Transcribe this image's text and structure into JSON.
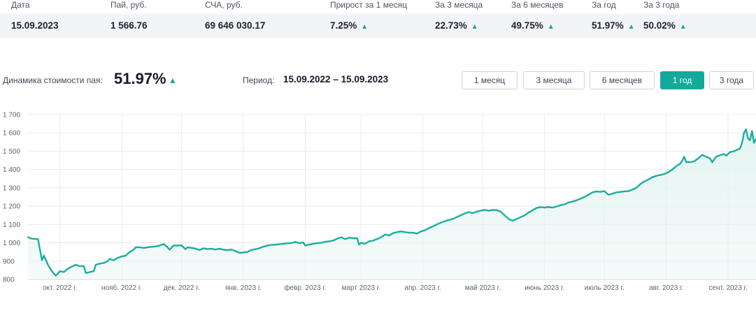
{
  "stats": {
    "headers": [
      "Дата",
      "Пай, руб.",
      "СЧА, руб.",
      "Прирост за 1 месяц",
      "За 3 месяца",
      "За 6 месяцев",
      "За год",
      "За 3 года"
    ],
    "values": [
      "15.09.2023",
      "1 566.76",
      "69 646 030.17",
      "7.25%",
      "22.73%",
      "49.75%",
      "51.97%",
      "50.02%"
    ],
    "up_arrow": "▲"
  },
  "dynamics": {
    "label": "Динамика стоимости пая:",
    "value": "51.97%",
    "arrow": "▲"
  },
  "period": {
    "label": "Период:",
    "value": "15.09.2022 – 15.09.2023"
  },
  "range_buttons": [
    {
      "label": "1 месяц",
      "active": false
    },
    {
      "label": "3 месяца",
      "active": false
    },
    {
      "label": "6 месяцев",
      "active": false
    },
    {
      "label": "1 год",
      "active": true
    },
    {
      "label": "3 года",
      "active": false
    }
  ],
  "colors": {
    "accent": "#14a99a",
    "line": "#1aae9f",
    "fill": "#e3f4f1",
    "grid": "#e8ebef"
  },
  "chart_data": {
    "type": "area",
    "title": "",
    "xlabel": "",
    "ylabel": "",
    "ylim": [
      800,
      1700
    ],
    "yticks": [
      800,
      900,
      1000,
      1100,
      1200,
      1300,
      1400,
      1500,
      1600,
      1700
    ],
    "ytick_labels": [
      "800",
      "900",
      "1 000",
      "1 100",
      "1 200",
      "1 300",
      "1 400",
      "1 500",
      "1 600",
      "1 700"
    ],
    "xlim": [
      "2022-09-15",
      "2023-09-15"
    ],
    "x_ticks": [
      {
        "date": "2022-10-01",
        "label": "окт. 2022 г."
      },
      {
        "date": "2022-11-01",
        "label": "нояб. 2022 г."
      },
      {
        "date": "2022-12-01",
        "label": "дек. 2022 г."
      },
      {
        "date": "2023-01-01",
        "label": "янв. 2023 г."
      },
      {
        "date": "2023-02-01",
        "label": "февр. 2023 г."
      },
      {
        "date": "2023-03-01",
        "label": "март 2023 г."
      },
      {
        "date": "2023-04-01",
        "label": "апр. 2023 г."
      },
      {
        "date": "2023-05-01",
        "label": "май 2023 г."
      },
      {
        "date": "2023-06-01",
        "label": "июнь 2023 г."
      },
      {
        "date": "2023-07-01",
        "label": "июль 2023 г."
      },
      {
        "date": "2023-08-01",
        "label": "авг. 2023 г."
      },
      {
        "date": "2023-09-01",
        "label": "сент. 2023 г."
      }
    ],
    "grid": true,
    "series": [
      {
        "points": [
          [
            "2022-09-15",
            1030
          ],
          [
            "2022-09-17",
            1022
          ],
          [
            "2022-09-20",
            1020
          ],
          [
            "2022-09-22",
            905
          ],
          [
            "2022-09-23",
            930
          ],
          [
            "2022-09-25",
            880
          ],
          [
            "2022-09-27",
            845
          ],
          [
            "2022-09-29",
            820
          ],
          [
            "2022-10-01",
            845
          ],
          [
            "2022-10-03",
            840
          ],
          [
            "2022-10-05",
            858
          ],
          [
            "2022-10-07",
            870
          ],
          [
            "2022-10-09",
            880
          ],
          [
            "2022-10-11",
            872
          ],
          [
            "2022-10-13",
            873
          ],
          [
            "2022-10-14",
            835
          ],
          [
            "2022-10-16",
            840
          ],
          [
            "2022-10-18",
            845
          ],
          [
            "2022-10-19",
            880
          ],
          [
            "2022-10-21",
            886
          ],
          [
            "2022-10-23",
            890
          ],
          [
            "2022-10-25",
            900
          ],
          [
            "2022-10-26",
            912
          ],
          [
            "2022-10-28",
            905
          ],
          [
            "2022-10-30",
            918
          ],
          [
            "2022-11-01",
            925
          ],
          [
            "2022-11-03",
            930
          ],
          [
            "2022-11-05",
            950
          ],
          [
            "2022-11-07",
            962
          ],
          [
            "2022-11-08",
            975
          ],
          [
            "2022-11-10",
            975
          ],
          [
            "2022-11-12",
            972
          ],
          [
            "2022-11-14",
            975
          ],
          [
            "2022-11-16",
            978
          ],
          [
            "2022-11-18",
            980
          ],
          [
            "2022-11-20",
            985
          ],
          [
            "2022-11-22",
            993
          ],
          [
            "2022-11-24",
            975
          ],
          [
            "2022-11-25",
            962
          ],
          [
            "2022-11-27",
            985
          ],
          [
            "2022-11-29",
            985
          ],
          [
            "2022-12-01",
            986
          ],
          [
            "2022-12-03",
            965
          ],
          [
            "2022-12-04",
            975
          ],
          [
            "2022-12-06",
            972
          ],
          [
            "2022-12-08",
            968
          ],
          [
            "2022-12-10",
            960
          ],
          [
            "2022-12-12",
            970
          ],
          [
            "2022-12-14",
            965
          ],
          [
            "2022-12-16",
            968
          ],
          [
            "2022-12-18",
            963
          ],
          [
            "2022-12-20",
            968
          ],
          [
            "2022-12-22",
            962
          ],
          [
            "2022-12-24",
            960
          ],
          [
            "2022-12-26",
            963
          ],
          [
            "2022-12-28",
            955
          ],
          [
            "2022-12-30",
            945
          ],
          [
            "2023-01-01",
            947
          ],
          [
            "2023-01-03",
            950
          ],
          [
            "2023-01-05",
            960
          ],
          [
            "2023-01-07",
            965
          ],
          [
            "2023-01-09",
            970
          ],
          [
            "2023-01-11",
            978
          ],
          [
            "2023-01-13",
            985
          ],
          [
            "2023-01-15",
            988
          ],
          [
            "2023-01-17",
            990
          ],
          [
            "2023-01-19",
            992
          ],
          [
            "2023-01-21",
            995
          ],
          [
            "2023-01-23",
            997
          ],
          [
            "2023-01-25",
            998
          ],
          [
            "2023-01-27",
            1005
          ],
          [
            "2023-01-29",
            998
          ],
          [
            "2023-01-31",
            1002
          ],
          [
            "2023-02-01",
            985
          ],
          [
            "2023-02-03",
            990
          ],
          [
            "2023-02-05",
            995
          ],
          [
            "2023-02-07",
            998
          ],
          [
            "2023-02-09",
            1000
          ],
          [
            "2023-02-11",
            1005
          ],
          [
            "2023-02-13",
            1008
          ],
          [
            "2023-02-15",
            1012
          ],
          [
            "2023-02-17",
            1022
          ],
          [
            "2023-02-19",
            1030
          ],
          [
            "2023-02-21",
            1020
          ],
          [
            "2023-02-23",
            1028
          ],
          [
            "2023-02-25",
            1025
          ],
          [
            "2023-02-27",
            1025
          ],
          [
            "2023-02-28",
            990
          ],
          [
            "2023-03-01",
            1000
          ],
          [
            "2023-03-03",
            995
          ],
          [
            "2023-03-05",
            1008
          ],
          [
            "2023-03-07",
            1012
          ],
          [
            "2023-03-09",
            1020
          ],
          [
            "2023-03-11",
            1030
          ],
          [
            "2023-03-13",
            1045
          ],
          [
            "2023-03-15",
            1040
          ],
          [
            "2023-03-17",
            1052
          ],
          [
            "2023-03-19",
            1058
          ],
          [
            "2023-03-21",
            1062
          ],
          [
            "2023-03-23",
            1058
          ],
          [
            "2023-03-25",
            1055
          ],
          [
            "2023-03-27",
            1055
          ],
          [
            "2023-03-29",
            1050
          ],
          [
            "2023-03-31",
            1062
          ],
          [
            "2023-04-02",
            1068
          ],
          [
            "2023-04-04",
            1080
          ],
          [
            "2023-04-06",
            1090
          ],
          [
            "2023-04-08",
            1100
          ],
          [
            "2023-04-10",
            1110
          ],
          [
            "2023-04-12",
            1118
          ],
          [
            "2023-04-14",
            1125
          ],
          [
            "2023-04-16",
            1130
          ],
          [
            "2023-04-18",
            1140
          ],
          [
            "2023-04-20",
            1150
          ],
          [
            "2023-04-22",
            1160
          ],
          [
            "2023-04-24",
            1168
          ],
          [
            "2023-04-26",
            1162
          ],
          [
            "2023-04-28",
            1170
          ],
          [
            "2023-04-30",
            1175
          ],
          [
            "2023-05-02",
            1180
          ],
          [
            "2023-05-04",
            1175
          ],
          [
            "2023-05-06",
            1180
          ],
          [
            "2023-05-08",
            1178
          ],
          [
            "2023-05-10",
            1170
          ],
          [
            "2023-05-12",
            1150
          ],
          [
            "2023-05-14",
            1130
          ],
          [
            "2023-05-16",
            1120
          ],
          [
            "2023-05-18",
            1130
          ],
          [
            "2023-05-20",
            1140
          ],
          [
            "2023-05-22",
            1150
          ],
          [
            "2023-05-24",
            1165
          ],
          [
            "2023-05-26",
            1178
          ],
          [
            "2023-05-28",
            1190
          ],
          [
            "2023-05-30",
            1195
          ],
          [
            "2023-06-01",
            1192
          ],
          [
            "2023-06-03",
            1195
          ],
          [
            "2023-06-05",
            1192
          ],
          [
            "2023-06-07",
            1198
          ],
          [
            "2023-06-09",
            1205
          ],
          [
            "2023-06-11",
            1210
          ],
          [
            "2023-06-13",
            1220
          ],
          [
            "2023-06-15",
            1225
          ],
          [
            "2023-06-17",
            1232
          ],
          [
            "2023-06-19",
            1240
          ],
          [
            "2023-06-21",
            1250
          ],
          [
            "2023-06-23",
            1262
          ],
          [
            "2023-06-25",
            1275
          ],
          [
            "2023-06-27",
            1280
          ],
          [
            "2023-06-29",
            1278
          ],
          [
            "2023-07-01",
            1282
          ],
          [
            "2023-07-03",
            1262
          ],
          [
            "2023-07-05",
            1268
          ],
          [
            "2023-07-07",
            1275
          ],
          [
            "2023-07-09",
            1278
          ],
          [
            "2023-07-11",
            1280
          ],
          [
            "2023-07-13",
            1282
          ],
          [
            "2023-07-15",
            1290
          ],
          [
            "2023-07-17",
            1300
          ],
          [
            "2023-07-19",
            1320
          ],
          [
            "2023-07-21",
            1335
          ],
          [
            "2023-07-23",
            1345
          ],
          [
            "2023-07-25",
            1358
          ],
          [
            "2023-07-27",
            1365
          ],
          [
            "2023-07-29",
            1370
          ],
          [
            "2023-07-31",
            1375
          ],
          [
            "2023-08-02",
            1385
          ],
          [
            "2023-08-04",
            1400
          ],
          [
            "2023-08-06",
            1418
          ],
          [
            "2023-08-08",
            1432
          ],
          [
            "2023-08-09",
            1448
          ],
          [
            "2023-08-10",
            1470
          ],
          [
            "2023-08-11",
            1440
          ],
          [
            "2023-08-13",
            1440
          ],
          [
            "2023-08-15",
            1445
          ],
          [
            "2023-08-17",
            1460
          ],
          [
            "2023-08-19",
            1480
          ],
          [
            "2023-08-21",
            1470
          ],
          [
            "2023-08-23",
            1460
          ],
          [
            "2023-08-24",
            1440
          ],
          [
            "2023-08-26",
            1470
          ],
          [
            "2023-08-28",
            1478
          ],
          [
            "2023-08-30",
            1485
          ],
          [
            "2023-08-31",
            1475
          ],
          [
            "2023-09-01",
            1485
          ],
          [
            "2023-09-02",
            1495
          ],
          [
            "2023-09-04",
            1500
          ],
          [
            "2023-09-05",
            1505
          ],
          [
            "2023-09-07",
            1515
          ],
          [
            "2023-09-08",
            1545
          ],
          [
            "2023-09-09",
            1600
          ],
          [
            "2023-09-10",
            1620
          ],
          [
            "2023-09-11",
            1570
          ],
          [
            "2023-09-12",
            1560
          ],
          [
            "2023-09-13",
            1610
          ],
          [
            "2023-09-14",
            1545
          ],
          [
            "2023-09-15",
            1567
          ]
        ]
      }
    ]
  }
}
